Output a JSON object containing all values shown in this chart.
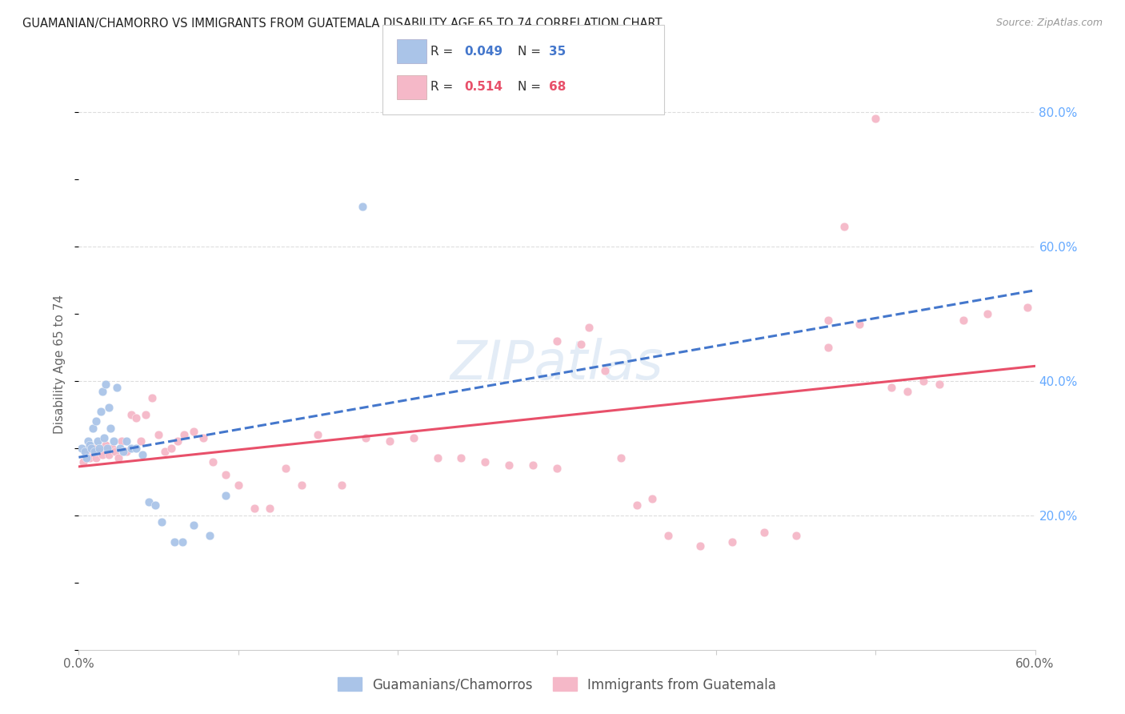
{
  "title": "GUAMANIAN/CHAMORRO VS IMMIGRANTS FROM GUATEMALA DISABILITY AGE 65 TO 74 CORRELATION CHART",
  "source": "Source: ZipAtlas.com",
  "ylabel": "Disability Age 65 to 74",
  "xlim": [
    0.0,
    0.6
  ],
  "ylim": [
    0.0,
    0.85
  ],
  "x_ticks": [
    0.0,
    0.1,
    0.2,
    0.3,
    0.4,
    0.5,
    0.6
  ],
  "x_tick_labels": [
    "0.0%",
    "",
    "",
    "",
    "",
    "",
    "60.0%"
  ],
  "y_ticks_right": [
    0.2,
    0.4,
    0.6,
    0.8
  ],
  "y_tick_labels_right": [
    "20.0%",
    "40.0%",
    "60.0%",
    "80.0%"
  ],
  "legend_labels": [
    "Guamanians/Chamorros",
    "Immigrants from Guatemala"
  ],
  "blue_color": "#aac4e8",
  "pink_color": "#f5b8c8",
  "blue_line_color": "#4477cc",
  "pink_line_color": "#e8506a",
  "watermark": "ZIPatlas",
  "blue_r": 0.049,
  "blue_n": 35,
  "pink_r": 0.514,
  "pink_n": 68,
  "blue_x": [
    0.002,
    0.004,
    0.005,
    0.006,
    0.007,
    0.008,
    0.009,
    0.01,
    0.011,
    0.012,
    0.013,
    0.014,
    0.015,
    0.016,
    0.017,
    0.018,
    0.019,
    0.02,
    0.022,
    0.024,
    0.026,
    0.028,
    0.03,
    0.033,
    0.036,
    0.04,
    0.044,
    0.048,
    0.052,
    0.06,
    0.065,
    0.072,
    0.082,
    0.092,
    0.178
  ],
  "blue_y": [
    0.3,
    0.295,
    0.285,
    0.31,
    0.305,
    0.3,
    0.33,
    0.295,
    0.34,
    0.31,
    0.3,
    0.355,
    0.385,
    0.315,
    0.395,
    0.3,
    0.36,
    0.33,
    0.31,
    0.39,
    0.3,
    0.295,
    0.31,
    0.3,
    0.3,
    0.29,
    0.22,
    0.215,
    0.19,
    0.16,
    0.16,
    0.185,
    0.17,
    0.23,
    0.66
  ],
  "pink_x": [
    0.003,
    0.005,
    0.007,
    0.009,
    0.011,
    0.013,
    0.015,
    0.017,
    0.019,
    0.021,
    0.023,
    0.025,
    0.027,
    0.03,
    0.033,
    0.036,
    0.039,
    0.042,
    0.046,
    0.05,
    0.054,
    0.058,
    0.062,
    0.066,
    0.072,
    0.078,
    0.084,
    0.092,
    0.1,
    0.11,
    0.12,
    0.13,
    0.14,
    0.15,
    0.165,
    0.18,
    0.195,
    0.21,
    0.225,
    0.24,
    0.255,
    0.27,
    0.285,
    0.3,
    0.315,
    0.33,
    0.35,
    0.37,
    0.39,
    0.41,
    0.3,
    0.32,
    0.34,
    0.36,
    0.43,
    0.45,
    0.47,
    0.49,
    0.51,
    0.53,
    0.47,
    0.48,
    0.5,
    0.52,
    0.54,
    0.555,
    0.57,
    0.595
  ],
  "pink_y": [
    0.28,
    0.295,
    0.285,
    0.3,
    0.285,
    0.295,
    0.29,
    0.305,
    0.29,
    0.3,
    0.295,
    0.285,
    0.31,
    0.295,
    0.35,
    0.345,
    0.31,
    0.35,
    0.375,
    0.32,
    0.295,
    0.3,
    0.31,
    0.32,
    0.325,
    0.315,
    0.28,
    0.26,
    0.245,
    0.21,
    0.21,
    0.27,
    0.245,
    0.32,
    0.245,
    0.315,
    0.31,
    0.315,
    0.285,
    0.285,
    0.28,
    0.275,
    0.275,
    0.27,
    0.455,
    0.415,
    0.215,
    0.17,
    0.155,
    0.16,
    0.46,
    0.48,
    0.285,
    0.225,
    0.175,
    0.17,
    0.45,
    0.485,
    0.39,
    0.4,
    0.49,
    0.63,
    0.79,
    0.385,
    0.395,
    0.49,
    0.5,
    0.51
  ]
}
